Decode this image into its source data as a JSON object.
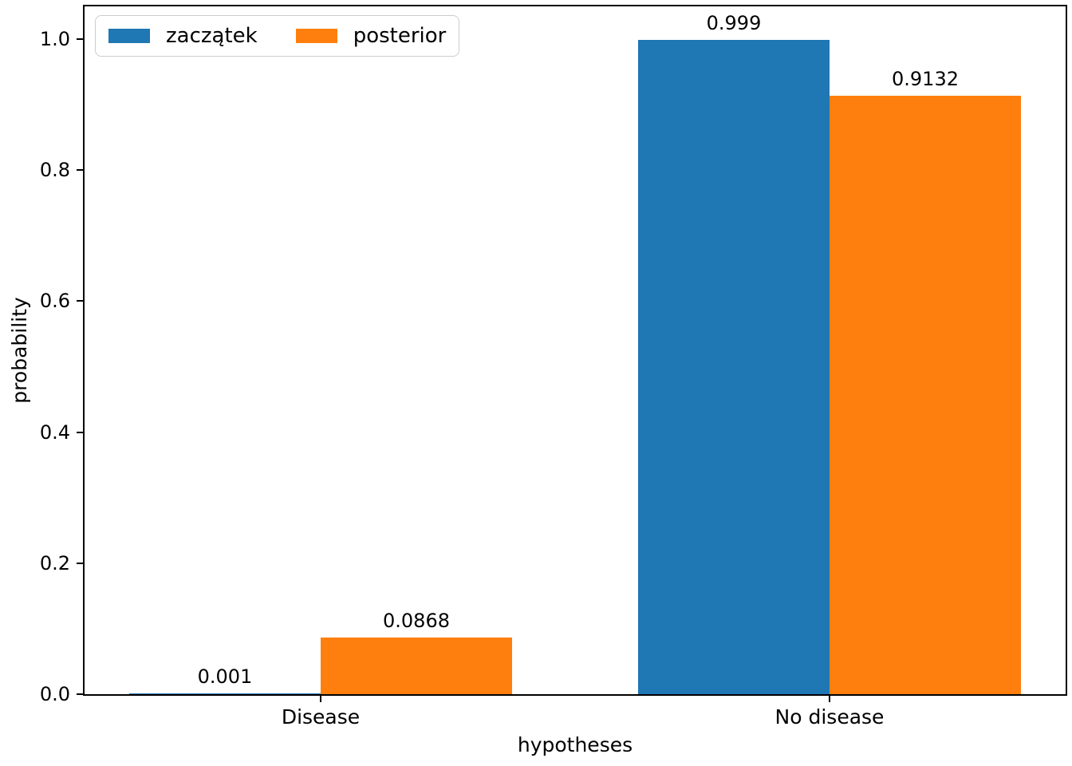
{
  "chart_data": {
    "type": "bar",
    "title": "",
    "xlabel": "hypotheses",
    "ylabel": "probability",
    "categories": [
      "Disease",
      "No disease"
    ],
    "series": [
      {
        "name": "zaczątek",
        "color": "#1f77b4",
        "values": [
          0.001,
          0.999
        ],
        "bar_labels": [
          "0.001",
          "0.999"
        ]
      },
      {
        "name": "posterior",
        "color": "#ff7f0e",
        "values": [
          0.0868,
          0.9132
        ],
        "bar_labels": [
          "0.0868",
          "0.9132"
        ]
      }
    ],
    "ylim": [
      0,
      1.05
    ],
    "yticks": [
      0.0,
      0.2,
      0.4,
      0.6,
      0.8,
      1.0
    ],
    "ytick_labels": [
      "0.0",
      "0.2",
      "0.4",
      "0.6",
      "0.8",
      "1.0"
    ],
    "grid": false,
    "legend_position": "upper left"
  }
}
